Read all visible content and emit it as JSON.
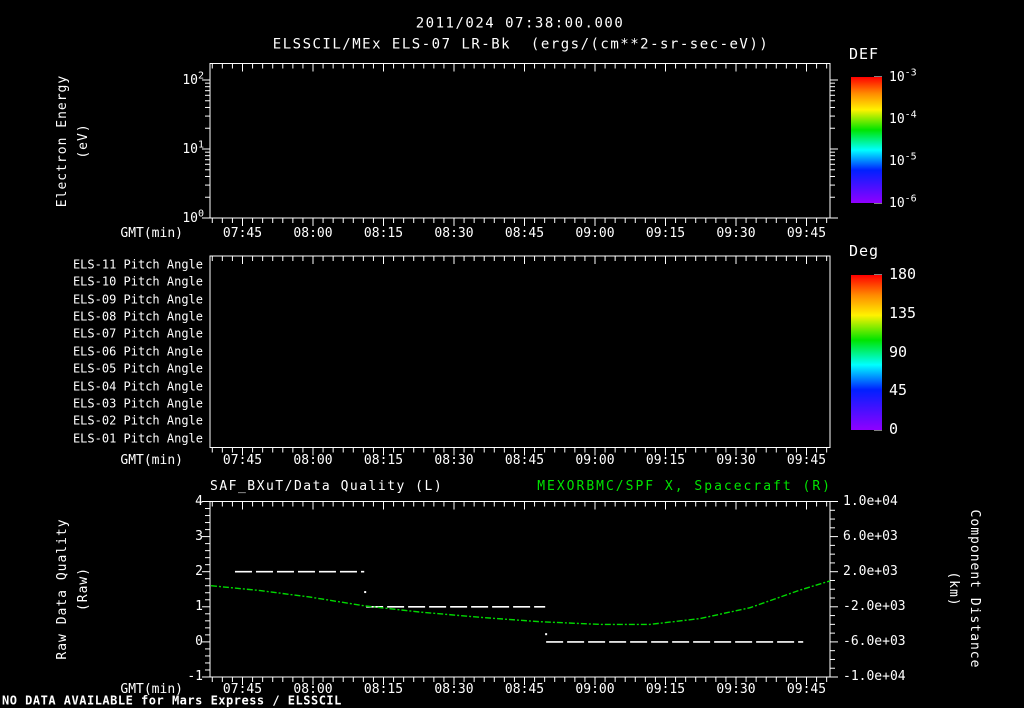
{
  "title": {
    "line1": "2011/024 07:38:00.000",
    "line2": "ELSSCIL/MEx ELS-07 LR-Bk  (ergs/(cm**2-sr-sec-eV))"
  },
  "status_text": "NO DATA AVAILABLE for Mars Express / ELSSCIL",
  "colors": {
    "background": "#000000",
    "foreground": "#ffffff",
    "accent_green": "#00e400",
    "curve_green": "#00d800",
    "rainbow_stops": [
      {
        "off": "0%",
        "color": "#ff0000"
      },
      {
        "off": "13%",
        "color": "#ff8a00"
      },
      {
        "off": "26%",
        "color": "#fff200"
      },
      {
        "off": "42%",
        "color": "#00e400"
      },
      {
        "off": "58%",
        "color": "#00ffff"
      },
      {
        "off": "74%",
        "color": "#0020ff"
      },
      {
        "off": "100%",
        "color": "#9000ff"
      }
    ]
  },
  "time_axis": {
    "label": "GMT(min)",
    "start": "07:38",
    "end": "09:50",
    "major_ticks": [
      {
        "m": 7,
        "label": "07:45"
      },
      {
        "m": 22,
        "label": "08:00"
      },
      {
        "m": 37,
        "label": "08:15"
      },
      {
        "m": 52,
        "label": "08:30"
      },
      {
        "m": 67,
        "label": "08:45"
      },
      {
        "m": 82,
        "label": "09:00"
      },
      {
        "m": 97,
        "label": "09:15"
      },
      {
        "m": 112,
        "label": "09:30"
      },
      {
        "m": 127,
        "label": "09:45"
      }
    ]
  },
  "panel_spectrogram": {
    "ylabel_line1": "Electron Energy",
    "ylabel_line2": "(eV)",
    "yticks": [
      {
        "mant": "10",
        "exp": "2"
      },
      {
        "mant": "10",
        "exp": "1"
      },
      {
        "mant": "10",
        "exp": "0"
      }
    ],
    "colorbar": {
      "title": "DEF",
      "tick_labels": [
        {
          "mant": "10",
          "exp": "-3"
        },
        {
          "mant": "10",
          "exp": "-4"
        },
        {
          "mant": "10",
          "exp": "-5"
        },
        {
          "mant": "10",
          "exp": "-6"
        }
      ]
    }
  },
  "panel_pitch": {
    "row_labels": [
      "ELS-11 Pitch Angle",
      "ELS-10 Pitch Angle",
      "ELS-09 Pitch Angle",
      "ELS-08 Pitch Angle",
      "ELS-07 Pitch Angle",
      "ELS-06 Pitch Angle",
      "ELS-05 Pitch Angle",
      "ELS-04 Pitch Angle",
      "ELS-03 Pitch Angle",
      "ELS-02 Pitch Angle",
      "ELS-01 Pitch Angle"
    ],
    "colorbar": {
      "title": "Deg",
      "tick_labels": [
        "180",
        "135",
        "90",
        "45",
        "0"
      ]
    }
  },
  "panel_quality": {
    "title_left": "SAF_BXuT/Data Quality (L)",
    "title_right": "MEXORBMC/SPF X, Spacecraft (R)",
    "ylabel_left_line1": "Raw Data Quality",
    "ylabel_left_line2": "(Raw)",
    "ylabel_right_line1": "Component Distance",
    "ylabel_right_line2": "(km)",
    "yticks_left": [
      "4",
      "3",
      "2",
      "1",
      "0",
      "-1"
    ],
    "yticks_right": [
      "1.0e+04",
      "6.0e+03",
      "2.0e+03",
      "-2.0e+03",
      "-6.0e+03",
      "-1.0e+04"
    ]
  },
  "chart_data": [
    {
      "type": "heatmap",
      "title": "ELSSCIL/MEx ELS-07 LR-Bk",
      "units": "ergs/(cm**2-sr-sec-eV)",
      "xlabel": "GMT(min)",
      "ylabel": "Electron Energy (eV)",
      "yscale": "log",
      "ylim": [
        1,
        160
      ],
      "xlim": [
        "07:38",
        "09:50"
      ],
      "colorbar": {
        "title": "DEF",
        "scale": "log",
        "ticks": [
          0.001,
          0.0001,
          1e-05,
          1e-06
        ]
      },
      "values": null,
      "note": "no data available"
    },
    {
      "type": "heatmap",
      "rows": [
        "ELS-11",
        "ELS-10",
        "ELS-09",
        "ELS-08",
        "ELS-07",
        "ELS-06",
        "ELS-05",
        "ELS-04",
        "ELS-03",
        "ELS-02",
        "ELS-01"
      ],
      "row_quantity": "Pitch Angle",
      "xlabel": "GMT(min)",
      "colorbar": {
        "title": "Deg",
        "ticks": [
          180,
          135,
          90,
          45,
          0
        ]
      },
      "values": null,
      "note": "no data available"
    },
    {
      "type": "line",
      "xlabel": "GMT(min)",
      "x_base": "minutes after 07:38",
      "ylim_left": [
        -1,
        4
      ],
      "ylim_right": [
        -10000,
        10000
      ],
      "series": [
        {
          "name": "SAF_BXuT/Data Quality (L)",
          "axis": "left",
          "style": "white-dashed-steps",
          "segments": [
            {
              "m0": 5.4,
              "m1": 32.9,
              "value": 2,
              "t0": "07:43",
              "t1": "08:11"
            },
            {
              "m0": 33.3,
              "m1": 71.4,
              "value": 1,
              "t0": "08:11",
              "t1": "08:49"
            },
            {
              "m0": 71.6,
              "m1": 126.3,
              "value": 0,
              "t0": "08:50",
              "t1": "09:44"
            }
          ],
          "transition_markers": [
            {
              "m": 33.1,
              "value": 1.42
            },
            {
              "m": 71.6,
              "value": 0.22
            }
          ]
        },
        {
          "name": "MEXORBMC/SPF X, Spacecraft (R)",
          "axis": "right",
          "style": "green-dash-dot",
          "t_min": [
            0.3,
            10.8,
            21.4,
            33.0,
            44.8,
            57.5,
            70.3,
            83.0,
            93.7,
            104.3,
            115.0,
            125.6,
            132.0
          ],
          "km": [
            400,
            -150,
            -900,
            -1900,
            -2600,
            -3200,
            -3700,
            -4000,
            -4000,
            -3350,
            -2100,
            -100,
            950
          ]
        }
      ]
    }
  ]
}
